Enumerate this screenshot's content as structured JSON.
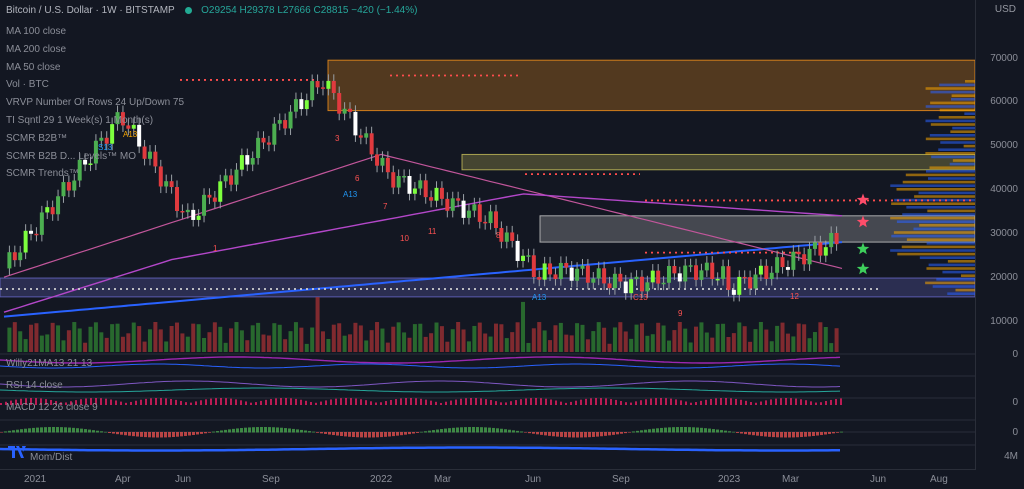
{
  "header": {
    "symbol": "Bitcoin / U.S. Dollar · 1W · BITSTAMP",
    "open": "O29254",
    "high": "H29378",
    "low": "L27666",
    "close": "C28815 −420 (−1.44%)",
    "status_color": "#22ab94"
  },
  "indicators": [
    "MA 100 close",
    "MA 200 close",
    "MA 50 close",
    "Vol · BTC",
    "VRVP Number Of Rows 24 Up/Down 75",
    "TI  Sqntl 29 1 Week(s) 1 Month(s)",
    "SCMR B2B™",
    "SCMR B2B D... Levels™ MO",
    "SCMR Trends™"
  ],
  "sub_panes": {
    "willy": "Willy21MA13 21 13",
    "rsi": "RSI 14 close",
    "macd": "MACD 12 26 close 9",
    "mom": "Mom/Dist"
  },
  "price_axis": {
    "currency_button": "USD",
    "labels": [
      "70000",
      "60000",
      "50000",
      "40000",
      "30000",
      "20000",
      "10000"
    ],
    "sub_labels": [
      "0",
      "0",
      "0",
      "4M"
    ]
  },
  "time_axis": {
    "labels": [
      "2021",
      "Apr",
      "Jun",
      "Sep",
      "2022",
      "Mar",
      "Jun",
      "Sep",
      "2023",
      "Mar",
      "Jun",
      "Aug"
    ]
  },
  "chart_data": {
    "type": "candlestick",
    "ylim": [
      10000,
      72000
    ],
    "zones": [
      {
        "from": 58000,
        "to": 69500,
        "color": "#f7931a"
      },
      {
        "from": 44500,
        "to": 48000,
        "color": "#c8c05a"
      },
      {
        "from": 28000,
        "to": 34000,
        "color": "#c8c8c8"
      },
      {
        "from": 15500,
        "to": 19800,
        "color": "#6a6acc"
      }
    ],
    "sequential_labels": [
      "A13",
      "S13",
      "A13",
      "A13",
      "C13",
      "9",
      "10",
      "11",
      "12",
      "1",
      "3",
      "6",
      "7",
      "8"
    ],
    "colors": {
      "up": "#4caf50",
      "down": "#e03a3e",
      "ma_blue": "#2962ff",
      "ma_pink": "#c2569b",
      "ma_purple": "#b347c9"
    }
  }
}
